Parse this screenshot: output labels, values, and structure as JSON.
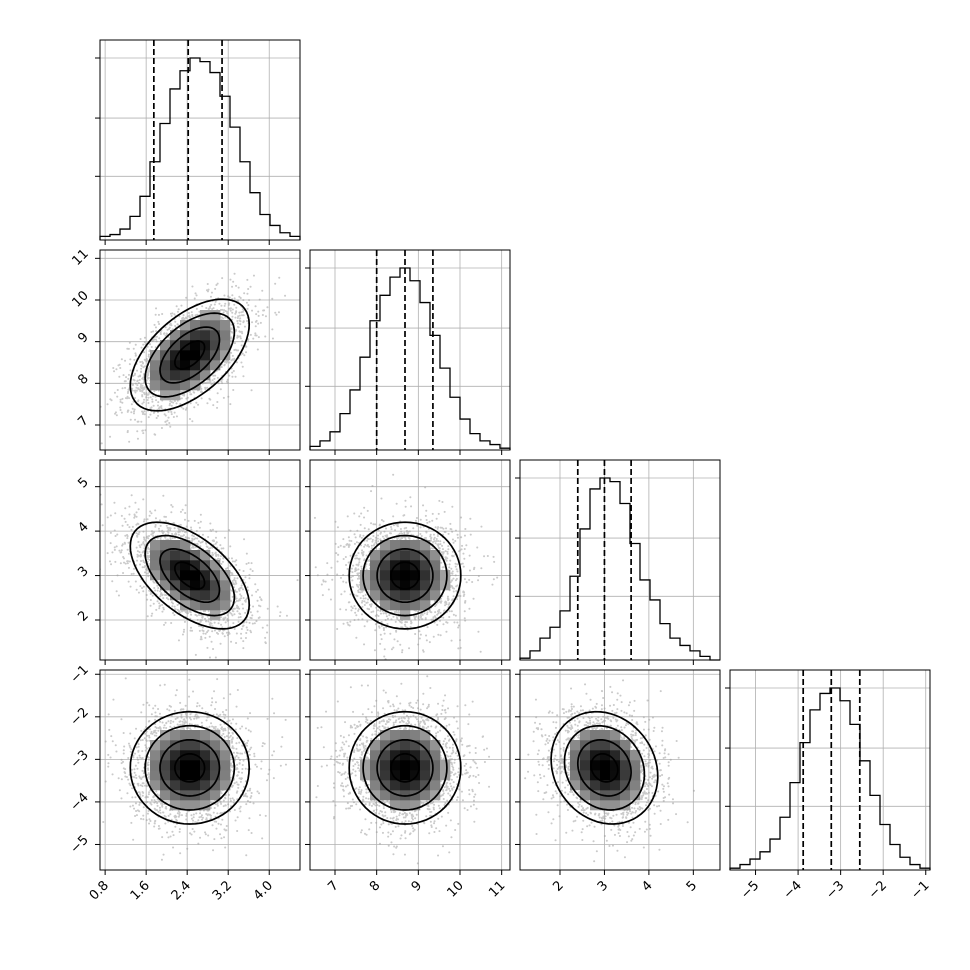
{
  "chart_data": {
    "type": "corner",
    "n_params": 4,
    "title": "",
    "parameters": [
      {
        "label": "",
        "range": [
          0.7,
          4.6
        ],
        "ticks": [
          0.8,
          1.6,
          2.4,
          3.2,
          4.0
        ],
        "tick_labels": [
          "0.8",
          "1.6",
          "2.4",
          "3.2",
          "4.0"
        ],
        "quantiles": [
          1.75,
          2.42,
          3.08
        ],
        "mean": 2.45,
        "sd": 0.58,
        "hist_bins": [
          0.02,
          0.03,
          0.06,
          0.13,
          0.24,
          0.43,
          0.64,
          0.83,
          0.93,
          1.0,
          0.98,
          0.92,
          0.79,
          0.62,
          0.43,
          0.26,
          0.14,
          0.08,
          0.04,
          0.02
        ]
      },
      {
        "label": "",
        "range": [
          6.4,
          11.2
        ],
        "ticks": [
          7,
          8,
          9,
          10,
          11
        ],
        "tick_labels": [
          "7",
          "8",
          "9",
          "10",
          "11"
        ],
        "quantiles": [
          8.0,
          8.68,
          9.35
        ],
        "mean": 8.68,
        "sd": 0.67,
        "hist_bins": [
          0.02,
          0.05,
          0.1,
          0.2,
          0.33,
          0.51,
          0.71,
          0.85,
          0.95,
          1.0,
          0.93,
          0.81,
          0.63,
          0.45,
          0.29,
          0.17,
          0.09,
          0.05,
          0.03,
          0.01
        ]
      },
      {
        "label": "",
        "range": [
          1.1,
          5.6
        ],
        "ticks": [
          2,
          3,
          4,
          5
        ],
        "tick_labels": [
          "2",
          "3",
          "4",
          "5"
        ],
        "quantiles": [
          2.4,
          3.0,
          3.6
        ],
        "mean": 3.0,
        "sd": 0.6,
        "hist_bins": [
          0.01,
          0.05,
          0.12,
          0.18,
          0.27,
          0.46,
          0.72,
          0.94,
          1.0,
          0.98,
          0.86,
          0.64,
          0.44,
          0.33,
          0.2,
          0.12,
          0.08,
          0.05,
          0.02,
          0.0
        ]
      },
      {
        "label": "",
        "range": [
          -5.6,
          -0.9
        ],
        "ticks": [
          -5,
          -4,
          -3,
          -2,
          -1
        ],
        "tick_labels": [
          "−5",
          "−4",
          "−3",
          "−2",
          "−1"
        ],
        "quantiles": [
          -3.88,
          -3.22,
          -2.55
        ],
        "mean": -3.2,
        "sd": 0.66,
        "hist_bins": [
          0.01,
          0.03,
          0.06,
          0.1,
          0.17,
          0.29,
          0.48,
          0.7,
          0.88,
          0.97,
          1.0,
          0.93,
          0.8,
          0.6,
          0.41,
          0.25,
          0.14,
          0.07,
          0.03,
          0.01
        ]
      }
    ],
    "correlations": [
      [
        1.0,
        0.55,
        -0.55,
        0.0
      ],
      [
        0.55,
        1.0,
        0.0,
        0.0
      ],
      [
        -0.55,
        0.0,
        1.0,
        -0.15
      ],
      [
        0.0,
        0.0,
        -0.15,
        1.0
      ]
    ],
    "contour_levels_sigma": [
      0.5,
      1.0,
      1.5,
      2.0
    ],
    "grid": true,
    "colors": {
      "line": "#000000",
      "grid": "#b0b0b0",
      "scatter": "#9e9e9e",
      "density_dark": "#000000"
    }
  }
}
